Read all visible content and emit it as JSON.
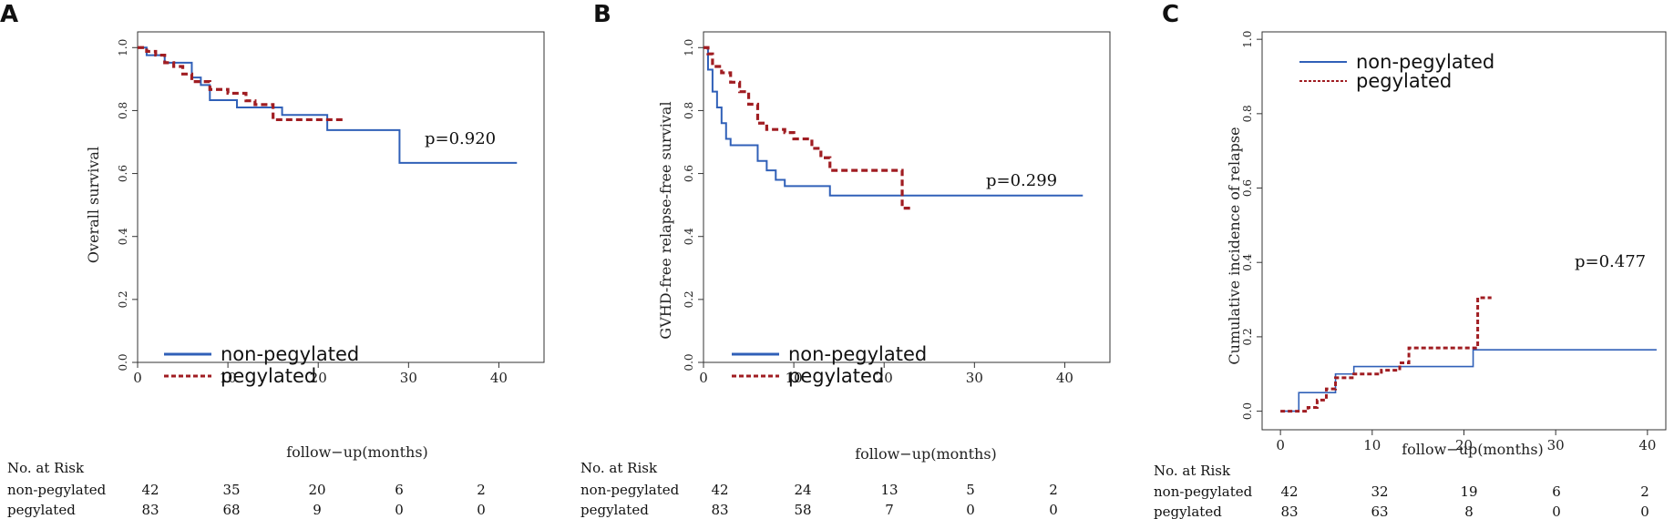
{
  "colors": {
    "non_pegylated": "#3060b8",
    "pegylated": "#a01d22",
    "axis": "#333333"
  },
  "chart_data": [
    {
      "type": "line",
      "panel": "A",
      "xlabel": "follow−up(months)",
      "ylabel": "Overall survival",
      "xlim": [
        0,
        45
      ],
      "ylim": [
        0,
        1.05
      ],
      "xticks": [
        0,
        10,
        20,
        30,
        40
      ],
      "yticks": [
        0.0,
        0.2,
        0.4,
        0.6,
        0.8,
        1.0
      ],
      "ytick_labels": [
        "0.0",
        "0.2",
        "0.4",
        "0.6",
        "0.8",
        "1.0"
      ],
      "pvalue": "p=0.920",
      "legend": [
        "non-pegylated",
        "pegylated"
      ],
      "series": [
        {
          "name": "non-pegylated",
          "style": "solid",
          "x": [
            0,
            1,
            3,
            6,
            7,
            8,
            11,
            16,
            21,
            29,
            42
          ],
          "y": [
            1.0,
            0.976,
            0.952,
            0.905,
            0.881,
            0.833,
            0.81,
            0.786,
            0.738,
            0.634,
            0.634
          ]
        },
        {
          "name": "pegylated",
          "style": "dashed",
          "x": [
            0,
            1,
            2,
            3,
            4,
            5,
            6,
            8,
            10,
            12,
            13,
            15,
            23
          ],
          "y": [
            1.0,
            0.988,
            0.976,
            0.952,
            0.94,
            0.916,
            0.892,
            0.867,
            0.855,
            0.831,
            0.819,
            0.771,
            0.771
          ]
        }
      ],
      "risk_table": {
        "title": "No. at Risk",
        "rows": [
          {
            "label": "non-pegylated",
            "values": [
              "42",
              "35",
              "20",
              "6",
              "2"
            ]
          },
          {
            "label": "pegylated",
            "values": [
              "83",
              "68",
              "9",
              "0",
              "0"
            ]
          }
        ]
      }
    },
    {
      "type": "line",
      "panel": "B",
      "xlabel": "follow−up(months)",
      "ylabel": "GVHD-free relapse-free survival",
      "xlim": [
        0,
        45
      ],
      "ylim": [
        0,
        1.05
      ],
      "xticks": [
        0,
        10,
        20,
        30,
        40
      ],
      "yticks": [
        0.0,
        0.2,
        0.4,
        0.6,
        0.8,
        1.0
      ],
      "ytick_labels": [
        "0.0",
        "0.2",
        "0.4",
        "0.6",
        "0.8",
        "1.0"
      ],
      "pvalue": "p=0.299",
      "legend": [
        "non-pegylated",
        "pegylated"
      ],
      "series": [
        {
          "name": "non-pegylated",
          "style": "solid",
          "x": [
            0,
            0.5,
            1,
            1.5,
            2,
            2.5,
            3,
            6,
            7,
            8,
            9,
            14,
            42
          ],
          "y": [
            1.0,
            0.93,
            0.86,
            0.81,
            0.76,
            0.71,
            0.69,
            0.64,
            0.61,
            0.58,
            0.56,
            0.53,
            0.53
          ]
        },
        {
          "name": "pegylated",
          "style": "dashed",
          "x": [
            0,
            0.5,
            1,
            2,
            3,
            4,
            5,
            6,
            7,
            9,
            10,
            12,
            13,
            14,
            22,
            23
          ],
          "y": [
            1.0,
            0.98,
            0.94,
            0.92,
            0.89,
            0.86,
            0.82,
            0.76,
            0.74,
            0.73,
            0.71,
            0.68,
            0.65,
            0.61,
            0.49,
            0.49
          ]
        }
      ],
      "risk_table": {
        "title": "No. at Risk",
        "rows": [
          {
            "label": "non-pegylated",
            "values": [
              "42",
              "24",
              "13",
              "5",
              "2"
            ]
          },
          {
            "label": "pegylated",
            "values": [
              "83",
              "58",
              "7",
              "0",
              "0"
            ]
          }
        ]
      }
    },
    {
      "type": "line",
      "panel": "C",
      "xlabel": "follow−up(months)",
      "ylabel": "Cumulative incidence of relapse",
      "xlim": [
        -2,
        42
      ],
      "ylim": [
        -0.05,
        1.02
      ],
      "xticks": [
        0,
        10,
        20,
        30,
        40
      ],
      "yticks": [
        0.0,
        0.2,
        0.4,
        0.6,
        0.8,
        1.0
      ],
      "ytick_labels": [
        "0.0",
        "0.2",
        "0.4",
        "0.6",
        "0.8",
        "1.0"
      ],
      "pvalue": "p=0.477",
      "legend": [
        "non-pegylated",
        "pegylated"
      ],
      "series": [
        {
          "name": "non-pegylated",
          "style": "solid",
          "x": [
            0,
            2,
            6,
            8,
            21,
            41
          ],
          "y": [
            0.0,
            0.05,
            0.1,
            0.12,
            0.165,
            0.165
          ]
        },
        {
          "name": "pegylated",
          "style": "dashed",
          "x": [
            0,
            3,
            4,
            5,
            6,
            8,
            11,
            13,
            14,
            21.5,
            23
          ],
          "y": [
            0.0,
            0.01,
            0.03,
            0.06,
            0.09,
            0.1,
            0.11,
            0.13,
            0.17,
            0.305,
            0.305
          ]
        }
      ],
      "risk_table": {
        "title": "No. at Risk",
        "rows": [
          {
            "label": "non-pegylated",
            "values": [
              "42",
              "32",
              "19",
              "6",
              "2"
            ]
          },
          {
            "label": "pegylated",
            "values": [
              "83",
              "63",
              "8",
              "0",
              "0"
            ]
          }
        ]
      }
    }
  ]
}
